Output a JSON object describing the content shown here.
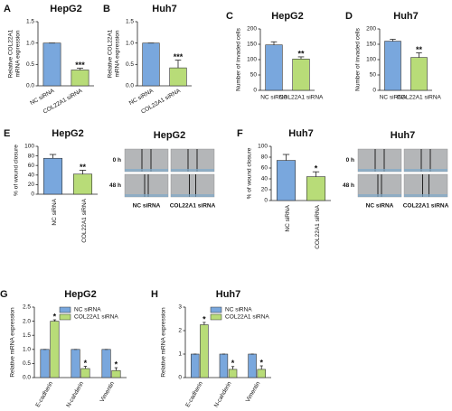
{
  "chart_data": [
    {
      "label": "A",
      "type": "bar",
      "title": "HepG2",
      "ylabel": [
        "Relative COL22A1",
        "mRNA expression"
      ],
      "categories": [
        "NC siRNA",
        "COL22A1 siRNA"
      ],
      "values": [
        1.0,
        0.37
      ],
      "errors": [
        0,
        0.04
      ],
      "colors": [
        "#79a7dd",
        "#b8dc78"
      ],
      "significance": [
        {
          "index": 1,
          "text": "***"
        }
      ],
      "ylim": [
        0,
        1.5
      ],
      "yticks": [
        {
          "value": 0,
          "label": "0.0"
        },
        0.5,
        {
          "value": 1,
          "label": "1.0"
        },
        1.5
      ]
    },
    {
      "label": "B",
      "type": "bar",
      "title": "Huh7",
      "ylabel": [
        "Relative COL22A1",
        "mRNA expression"
      ],
      "categories": [
        "NC siRNA",
        "COL22A1 siRNA"
      ],
      "values": [
        1.0,
        0.42
      ],
      "errors": [
        0,
        0.18
      ],
      "colors": [
        "#79a7dd",
        "#b8dc78"
      ],
      "significance": [
        {
          "index": 1,
          "text": "***"
        }
      ],
      "ylim": [
        0,
        1.5
      ],
      "yticks": [
        {
          "value": 0,
          "label": "0.0"
        },
        0.5,
        {
          "value": 1,
          "label": "1.0"
        },
        1.5
      ]
    },
    {
      "label": "C",
      "type": "bar",
      "title": "HepG2",
      "ylabel": "Number of invaded cells",
      "categories": [
        "NC siRNA",
        "COL22A1 siRNA"
      ],
      "values": [
        148,
        102
      ],
      "errors": [
        10,
        7
      ],
      "colors": [
        "#79a7dd",
        "#b8dc78"
      ],
      "significance": [
        {
          "index": 1,
          "text": "**"
        }
      ],
      "ylim": [
        0,
        200
      ],
      "yticks": [
        0,
        50,
        100,
        150,
        200
      ]
    },
    {
      "label": "D",
      "type": "bar",
      "title": "Huh7",
      "ylabel": "Number of invaded cells",
      "categories": [
        "NC siRNA",
        "COL22A1 siRNA"
      ],
      "values": [
        160,
        107
      ],
      "errors": [
        6,
        15
      ],
      "colors": [
        "#79a7dd",
        "#b8dc78"
      ],
      "significance": [
        {
          "index": 1,
          "text": "**"
        }
      ],
      "ylim": [
        0,
        200
      ],
      "yticks": [
        0,
        50,
        100,
        150,
        200
      ]
    },
    {
      "label": "E",
      "type": "bar",
      "title": "HepG2",
      "ylabel": "% of wound closure",
      "categories": [
        "NC siRNA",
        "COL22A1 siRNA"
      ],
      "values": [
        75,
        42
      ],
      "errors": [
        8,
        8
      ],
      "colors": [
        "#79a7dd",
        "#b8dc78"
      ],
      "significance": [
        {
          "index": 1,
          "text": "**"
        }
      ],
      "ylim": [
        0,
        100
      ],
      "yticks": [
        0,
        20,
        40,
        60,
        80,
        100
      ],
      "image_panel": {
        "title": "HepG2",
        "rows": [
          "0 h",
          "48 h"
        ],
        "columns": [
          "NC siRNA",
          "COL22A1 siRNA"
        ]
      }
    },
    {
      "label": "F",
      "type": "bar",
      "title": "Huh7",
      "ylabel": "% of wound closure",
      "categories": [
        "NC siRNA",
        "COL22A1 siRNA"
      ],
      "values": [
        74,
        44
      ],
      "errors": [
        11,
        9
      ],
      "colors": [
        "#79a7dd",
        "#b8dc78"
      ],
      "significance": [
        {
          "index": 1,
          "text": "*"
        }
      ],
      "ylim": [
        0,
        100
      ],
      "yticks": [
        0,
        20,
        40,
        60,
        80,
        100
      ],
      "image_panel": {
        "title": "Huh7",
        "rows": [
          "0 h",
          "48 h"
        ],
        "columns": [
          "NC siRNA",
          "COL22A1 siRNA"
        ]
      }
    },
    {
      "label": "G",
      "type": "bar",
      "title": "HepG2",
      "ylabel": "Relative mRNA expression",
      "categories": [
        "E-cadherin",
        "N-cahderin",
        "Vimentin"
      ],
      "series": [
        {
          "name": "NC siRNA",
          "color": "#79a7dd",
          "values": [
            1,
            1,
            1
          ],
          "errors": [
            0,
            0,
            0
          ]
        },
        {
          "name": "COL22A1 siRNA",
          "color": "#b8dc78",
          "values": [
            2.0,
            0.32,
            0.25
          ],
          "errors": [
            0.05,
            0.08,
            0.1
          ]
        }
      ],
      "significance": [
        {
          "series": 1,
          "index": 0,
          "text": "*"
        },
        {
          "series": 1,
          "index": 1,
          "text": "*"
        },
        {
          "series": 1,
          "index": 2,
          "text": "*"
        }
      ],
      "legend": "top",
      "ylim": [
        0,
        2.5
      ],
      "yticks": [
        {
          "value": 0,
          "label": "0.0"
        },
        0.5,
        {
          "value": 1,
          "label": "1.0"
        },
        1.5,
        {
          "value": 2,
          "label": "2.0"
        },
        2.5
      ]
    },
    {
      "label": "H",
      "type": "bar",
      "title": "Huh7",
      "ylabel": "Relative mRNA expression",
      "categories": [
        "E-cadherin",
        "N-cahderin",
        "Vimentin"
      ],
      "series": [
        {
          "name": "NC siRNA",
          "color": "#79a7dd",
          "values": [
            1,
            1,
            1
          ],
          "errors": [
            0,
            0,
            0
          ]
        },
        {
          "name": "COL22A1 siRNA",
          "color": "#b8dc78",
          "values": [
            2.25,
            0.35,
            0.35
          ],
          "errors": [
            0.1,
            0.12,
            0.15
          ]
        }
      ],
      "significance": [
        {
          "series": 1,
          "index": 0,
          "text": "*"
        },
        {
          "series": 1,
          "index": 1,
          "text": "*"
        },
        {
          "series": 1,
          "index": 2,
          "text": "*"
        }
      ],
      "legend": "top",
      "ylim": [
        0,
        3
      ],
      "yticks": [
        0,
        1,
        2,
        3
      ]
    }
  ]
}
